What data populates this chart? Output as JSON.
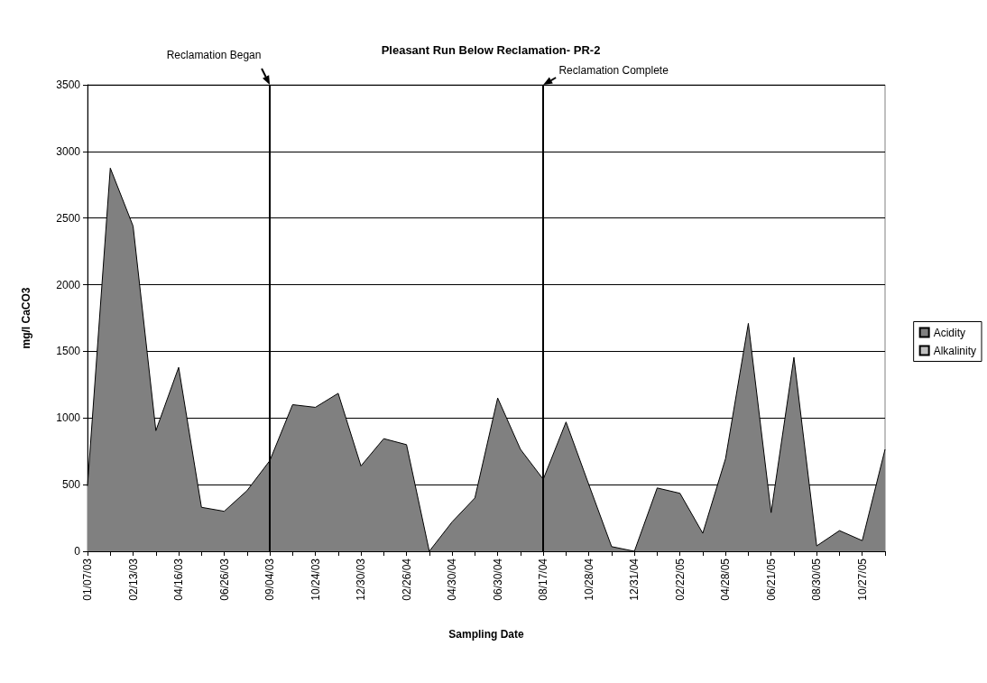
{
  "chart_data": {
    "type": "area",
    "title": "Pleasant Run Below Reclamation- PR-2",
    "xlabel": "Sampling Date",
    "ylabel": "mg/l CaCO3",
    "categories": [
      "01/07/03",
      null,
      "02/13/03",
      null,
      "04/16/03",
      null,
      "06/26/03",
      null,
      "09/04/03",
      null,
      "10/24/03",
      null,
      "12/30/03",
      null,
      "02/26/04",
      null,
      "04/30/04",
      null,
      "06/30/04",
      null,
      "08/17/04",
      null,
      "10/28/04",
      null,
      "12/31/04",
      null,
      "02/22/05",
      null,
      "04/28/05",
      null,
      "06/21/05",
      null,
      "08/30/05",
      null,
      "10/27/05",
      null
    ],
    "series": [
      {
        "name": "Acidity",
        "color": "#808080",
        "values": [
          490,
          2875,
          2440,
          905,
          1380,
          330,
          300,
          455,
          680,
          1100,
          1080,
          1185,
          640,
          845,
          800,
          0,
          220,
          400,
          1150,
          765,
          540,
          970,
          500,
          35,
          0,
          475,
          435,
          135,
          695,
          1710,
          290,
          1455,
          40,
          155,
          80,
          765
        ]
      },
      {
        "name": "Alkalinity",
        "color": "#c0c0c0",
        "values": [
          null,
          null,
          null,
          null,
          null,
          null,
          null,
          null,
          null,
          null,
          null,
          null,
          null,
          null,
          null,
          null,
          null,
          null,
          null,
          null,
          null,
          null,
          null,
          null,
          null,
          null,
          null,
          null,
          null,
          null,
          null,
          null,
          null,
          null,
          null,
          null
        ]
      }
    ],
    "ylim": [
      0,
      3500
    ],
    "yticks": [
      0,
      500,
      1000,
      1500,
      2000,
      2500,
      3000,
      3500
    ],
    "grid": "y",
    "legend": "right",
    "marker": "none",
    "line_style": "solid",
    "ref_lines": [
      {
        "axis": "x",
        "value": "09/04/03",
        "label": "Reclamation Began"
      },
      {
        "axis": "x",
        "value": "08/17/04",
        "label": "Reclamation Complete"
      }
    ]
  }
}
